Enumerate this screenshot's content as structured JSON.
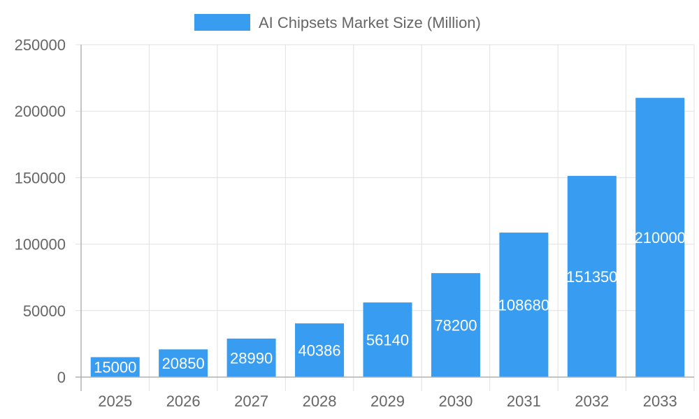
{
  "chart_data": {
    "type": "bar",
    "title": "",
    "xlabel": "",
    "ylabel": "",
    "categories": [
      "2025",
      "2026",
      "2027",
      "2028",
      "2029",
      "2030",
      "2031",
      "2032",
      "2033"
    ],
    "series": [
      {
        "name": "AI Chipsets Market Size (Million)",
        "color": "#389cf0",
        "values": [
          15000,
          20850,
          28990,
          40386,
          56140,
          78200,
          108680,
          151350,
          210000
        ]
      }
    ],
    "ylim": [
      0,
      250000
    ],
    "yticks": [
      0,
      50000,
      100000,
      150000,
      200000,
      250000
    ],
    "grid": true,
    "legend_position": "top-center",
    "data_labels": [
      "15000",
      "20850",
      "28990",
      "40386",
      "56140",
      "78200",
      "108680",
      "151350",
      "210000"
    ]
  }
}
